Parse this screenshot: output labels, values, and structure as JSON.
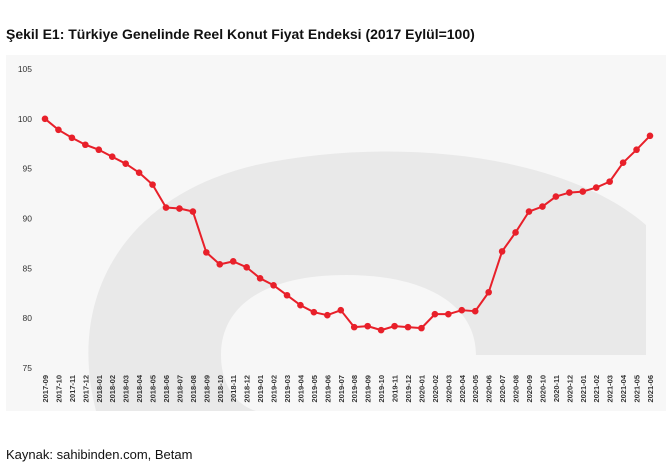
{
  "title": "Şekil E1: Türkiye Genelinde Reel Konut Fiyat Endeksi (2017 Eylül=100)",
  "source": "Kaynak: sahibinden.com, Betam",
  "colors": {
    "line": "#e8202a",
    "background": "#f7f7f7",
    "watermark": "#e9e9e9"
  },
  "chart_data": {
    "type": "line",
    "title": "Şekil E1: Türkiye Genelinde Reel Konut Fiyat Endeksi (2017 Eylül=100)",
    "xlabel": "",
    "ylabel": "",
    "ylim": [
      75,
      105
    ],
    "yticks": [
      "75",
      "80",
      "85",
      "90",
      "95",
      "100",
      "105"
    ],
    "grid": false,
    "legend": "none",
    "categories": [
      "2017-09",
      "2017-10",
      "2017-11",
      "2017-12",
      "2018-01",
      "2018-02",
      "2018-03",
      "2018-04",
      "2018-05",
      "2018-06",
      "2018-07",
      "2018-08",
      "2018-09",
      "2018-10",
      "2018-11",
      "2018-12",
      "2019-01",
      "2019-02",
      "2019-03",
      "2019-04",
      "2019-05",
      "2019-06",
      "2019-07",
      "2019-08",
      "2019-09",
      "2019-10",
      "2019-11",
      "2019-12",
      "2020-01",
      "2020-02",
      "2020-03",
      "2020-04",
      "2020-05",
      "2020-06",
      "2020-07",
      "2020-08",
      "2020-09",
      "2020-10",
      "2020-11",
      "2020-12",
      "2021-01",
      "2021-02",
      "2021-03",
      "2021-04",
      "2021-05",
      "2021-06"
    ],
    "values": [
      100.0,
      98.9,
      98.1,
      97.4,
      96.9,
      96.2,
      95.5,
      94.6,
      93.4,
      91.1,
      91.0,
      90.7,
      86.6,
      85.4,
      85.7,
      85.1,
      84.0,
      83.3,
      82.3,
      81.3,
      80.6,
      80.3,
      80.8,
      79.1,
      79.2,
      78.8,
      79.2,
      79.1,
      79.0,
      80.4,
      80.4,
      80.8,
      80.7,
      82.6,
      86.7,
      88.6,
      90.7,
      91.2,
      92.2,
      92.6,
      92.7,
      93.1,
      93.7,
      95.6,
      96.9,
      98.3
    ]
  }
}
